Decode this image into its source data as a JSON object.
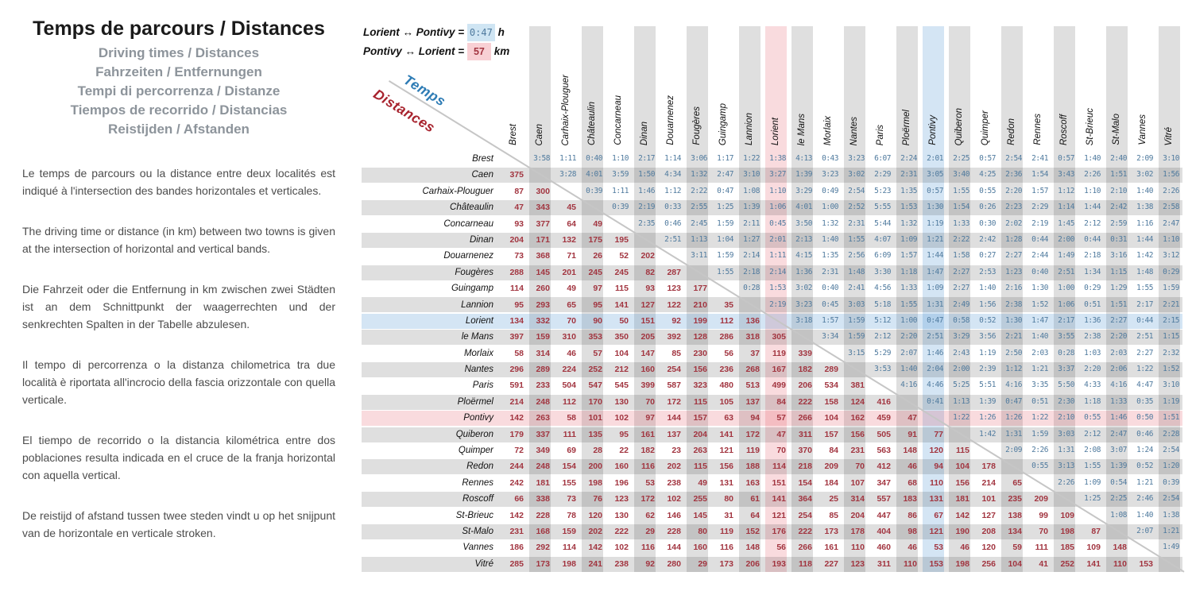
{
  "panel": {
    "title": "Temps de parcours / Distances",
    "subtitles": [
      "Driving times / Distances",
      "Fahrzeiten / Entfernungen",
      "Tempi di percorrenza / Distanze",
      "Tiempos de recorrido / Distancias",
      "Reistijden / Afstanden"
    ],
    "paragraphs": [
      "Le temps de parcours ou la distance entre deux localités est indiqué à l'intersection des bandes horizontales et verticales.",
      "The driving time or distance (in km) between two towns is given at the intersection of horizontal and vertical bands.",
      "Die Fahrzeit oder die Entfernung in km zwischen zwei Städten ist an dem Schnittpunkt der waagerrechten und der senkrechten Spalten in der Tabelle abzulesen.",
      "Il tempo di percorrenza o la distanza chilometrica tra due località è riportata all'incrocio della fascia orizzontale con quella verticale.",
      "El tiempo de recorrido o la distancia kilométrica entre dos poblaciones resulta indicada en el cruce de la franja horizontal con aquella vertical.",
      "De reistijd of afstand tussen twee steden vindt u op het snijpunt van de horizontale en verticale stroken."
    ]
  },
  "legend": {
    "line1": {
      "label": "Lorient ↔ Pontivy =",
      "value": "0:47",
      "unit": "h"
    },
    "line2": {
      "label": "Pontivy ↔ Lorient =",
      "value": "57",
      "unit": "km"
    }
  },
  "axis_labels": {
    "time": "Temps",
    "distance": "Distances"
  },
  "colors": {
    "time_text": "#4f7a9e",
    "distance_text": "#a23540",
    "band_gray": "#dcdcdc",
    "highlight_blue": "#cfe5f3",
    "highlight_pink": "#f8d0d4",
    "title": "#1a1a1a",
    "subtitle": "#8d949b"
  },
  "matrix": {
    "upper_triangle": "driving times h:mm",
    "lower_triangle": "distances km",
    "cities": [
      "Brest",
      "Caen",
      "Carhaix-Plouguer",
      "Châteaulin",
      "Concarneau",
      "Dinan",
      "Douarnenez",
      "Fougères",
      "Guingamp",
      "Lannion",
      "Lorient",
      "le Mans",
      "Morlaix",
      "Nantes",
      "Paris",
      "Ploërmel",
      "Pontivy",
      "Quiberon",
      "Quimper",
      "Redon",
      "Rennes",
      "Roscoff",
      "St-Brieuc",
      "St-Malo",
      "Vannes",
      "Vitré"
    ],
    "row_bands": {
      "Lorient": "blue",
      "Pontivy": "pink"
    },
    "col_bands": {
      "Lorient": "pink",
      "Pontivy": "blue"
    },
    "rows": [
      [
        "",
        "3:58",
        "1:11",
        "0:40",
        "1:10",
        "2:17",
        "1:14",
        "3:06",
        "1:17",
        "1:22",
        "1:38",
        "4:13",
        "0:43",
        "3:23",
        "6:07",
        "2:24",
        "2:01",
        "2:25",
        "0:57",
        "2:54",
        "2:41",
        "0:57",
        "1:40",
        "2:40",
        "2:09",
        "3:10"
      ],
      [
        "375",
        "",
        "3:28",
        "4:01",
        "3:59",
        "1:50",
        "4:34",
        "1:32",
        "2:47",
        "3:10",
        "3:27",
        "1:39",
        "3:23",
        "3:02",
        "2:29",
        "2:31",
        "3:05",
        "3:40",
        "4:25",
        "2:36",
        "1:54",
        "3:43",
        "2:26",
        "1:51",
        "3:02",
        "1:56"
      ],
      [
        "87",
        "300",
        "",
        "0:39",
        "1:11",
        "1:46",
        "1:12",
        "2:22",
        "0:47",
        "1:08",
        "1:10",
        "3:29",
        "0:49",
        "2:54",
        "5:23",
        "1:35",
        "0:57",
        "1:55",
        "0:55",
        "2:20",
        "1:57",
        "1:12",
        "1:10",
        "2:10",
        "1:40",
        "2:26"
      ],
      [
        "47",
        "343",
        "45",
        "",
        "0:39",
        "2:19",
        "0:33",
        "2:55",
        "1:25",
        "1:39",
        "1:06",
        "4:01",
        "1:00",
        "2:52",
        "5:55",
        "1:53",
        "1:30",
        "1:54",
        "0:26",
        "2:23",
        "2:29",
        "1:14",
        "1:44",
        "2:42",
        "1:38",
        "2:58"
      ],
      [
        "93",
        "377",
        "64",
        "49",
        "",
        "2:35",
        "0:46",
        "2:45",
        "1:59",
        "2:11",
        "0:45",
        "3:50",
        "1:32",
        "2:31",
        "5:44",
        "1:32",
        "1:19",
        "1:33",
        "0:30",
        "2:02",
        "2:19",
        "1:45",
        "2:12",
        "2:59",
        "1:16",
        "2:47"
      ],
      [
        "204",
        "171",
        "132",
        "175",
        "195",
        "",
        "2:51",
        "1:13",
        "1:04",
        "1:27",
        "2:01",
        "2:13",
        "1:40",
        "1:55",
        "4:07",
        "1:09",
        "1:21",
        "2:22",
        "2:42",
        "1:28",
        "0:44",
        "2:00",
        "0:44",
        "0:31",
        "1:44",
        "1:10"
      ],
      [
        "73",
        "368",
        "71",
        "26",
        "52",
        "202",
        "",
        "3:11",
        "1:59",
        "2:14",
        "1:11",
        "4:15",
        "1:35",
        "2:56",
        "6:09",
        "1:57",
        "1:44",
        "1:58",
        "0:27",
        "2:27",
        "2:44",
        "1:49",
        "2:18",
        "3:16",
        "1:42",
        "3:12"
      ],
      [
        "288",
        "145",
        "201",
        "245",
        "245",
        "82",
        "287",
        "",
        "1:55",
        "2:18",
        "2:14",
        "1:36",
        "2:31",
        "1:48",
        "3:30",
        "1:18",
        "1:47",
        "2:27",
        "2:53",
        "1:23",
        "0:40",
        "2:51",
        "1:34",
        "1:15",
        "1:48",
        "0:29"
      ],
      [
        "114",
        "260",
        "49",
        "97",
        "115",
        "93",
        "123",
        "177",
        "",
        "0:28",
        "1:53",
        "3:02",
        "0:40",
        "2:41",
        "4:56",
        "1:33",
        "1:09",
        "2:27",
        "1:40",
        "2:16",
        "1:30",
        "1:00",
        "0:29",
        "1:29",
        "1:55",
        "1:59"
      ],
      [
        "95",
        "293",
        "65",
        "95",
        "141",
        "127",
        "122",
        "210",
        "35",
        "",
        "2:19",
        "3:23",
        "0:45",
        "3:03",
        "5:18",
        "1:55",
        "1:31",
        "2:49",
        "1:56",
        "2:38",
        "1:52",
        "1:06",
        "0:51",
        "1:51",
        "2:17",
        "2:21"
      ],
      [
        "134",
        "332",
        "70",
        "90",
        "50",
        "151",
        "92",
        "199",
        "112",
        "136",
        "",
        "3:18",
        "1:57",
        "1:59",
        "5:12",
        "1:00",
        "0:47",
        "0:58",
        "0:52",
        "1:30",
        "1:47",
        "2:17",
        "1:36",
        "2:27",
        "0:44",
        "2:15"
      ],
      [
        "397",
        "159",
        "310",
        "353",
        "350",
        "205",
        "392",
        "128",
        "286",
        "318",
        "305",
        "",
        "3:34",
        "1:59",
        "2:12",
        "2:20",
        "2:51",
        "3:29",
        "3:56",
        "2:21",
        "1:40",
        "3:55",
        "2:38",
        "2:20",
        "2:51",
        "1:15"
      ],
      [
        "58",
        "314",
        "46",
        "57",
        "104",
        "147",
        "85",
        "230",
        "56",
        "37",
        "119",
        "339",
        "",
        "3:15",
        "5:29",
        "2:07",
        "1:46",
        "2:43",
        "1:19",
        "2:50",
        "2:03",
        "0:28",
        "1:03",
        "2:03",
        "2:27",
        "2:32"
      ],
      [
        "296",
        "289",
        "224",
        "252",
        "212",
        "160",
        "254",
        "156",
        "236",
        "268",
        "167",
        "182",
        "289",
        "",
        "3:53",
        "1:40",
        "2:04",
        "2:00",
        "2:39",
        "1:12",
        "1:21",
        "3:37",
        "2:20",
        "2:06",
        "1:22",
        "1:52"
      ],
      [
        "591",
        "233",
        "504",
        "547",
        "545",
        "399",
        "587",
        "323",
        "480",
        "513",
        "499",
        "206",
        "534",
        "381",
        "",
        "4:16",
        "4:46",
        "5:25",
        "5:51",
        "4:16",
        "3:35",
        "5:50",
        "4:33",
        "4:16",
        "4:47",
        "3:10"
      ],
      [
        "214",
        "248",
        "112",
        "170",
        "130",
        "70",
        "172",
        "115",
        "105",
        "137",
        "84",
        "222",
        "158",
        "124",
        "416",
        "",
        "0:41",
        "1:13",
        "1:39",
        "0:47",
        "0:51",
        "2:30",
        "1:18",
        "1:33",
        "0:35",
        "1:19"
      ],
      [
        "142",
        "263",
        "58",
        "101",
        "102",
        "97",
        "144",
        "157",
        "63",
        "94",
        "57",
        "266",
        "104",
        "162",
        "459",
        "47",
        "",
        "1:22",
        "1:26",
        "1:26",
        "1:22",
        "2:10",
        "0:55",
        "1:46",
        "0:50",
        "1:51"
      ],
      [
        "179",
        "337",
        "111",
        "135",
        "95",
        "161",
        "137",
        "204",
        "141",
        "172",
        "47",
        "311",
        "157",
        "156",
        "505",
        "91",
        "77",
        "",
        "1:42",
        "1:31",
        "1:59",
        "3:03",
        "2:12",
        "2:47",
        "0:46",
        "2:28"
      ],
      [
        "72",
        "349",
        "69",
        "28",
        "22",
        "182",
        "23",
        "263",
        "121",
        "119",
        "70",
        "370",
        "84",
        "231",
        "563",
        "148",
        "120",
        "115",
        "",
        "2:09",
        "2:26",
        "1:31",
        "2:08",
        "3:07",
        "1:24",
        "2:54"
      ],
      [
        "244",
        "248",
        "154",
        "200",
        "160",
        "116",
        "202",
        "115",
        "156",
        "188",
        "114",
        "218",
        "209",
        "70",
        "412",
        "46",
        "94",
        "104",
        "178",
        "",
        "0:55",
        "3:13",
        "1:55",
        "1:39",
        "0:52",
        "1:20"
      ],
      [
        "242",
        "181",
        "155",
        "198",
        "196",
        "53",
        "238",
        "49",
        "131",
        "163",
        "151",
        "154",
        "184",
        "107",
        "347",
        "68",
        "110",
        "156",
        "214",
        "65",
        "",
        "2:26",
        "1:09",
        "0:54",
        "1:21",
        "0:39"
      ],
      [
        "66",
        "338",
        "73",
        "76",
        "123",
        "172",
        "102",
        "255",
        "80",
        "61",
        "141",
        "364",
        "25",
        "314",
        "557",
        "183",
        "131",
        "181",
        "101",
        "235",
        "209",
        "",
        "1:25",
        "2:25",
        "2:46",
        "2:54"
      ],
      [
        "142",
        "228",
        "78",
        "120",
        "130",
        "62",
        "146",
        "145",
        "31",
        "64",
        "121",
        "254",
        "85",
        "204",
        "447",
        "86",
        "67",
        "142",
        "127",
        "138",
        "99",
        "109",
        "",
        "1:08",
        "1:40",
        "1:38"
      ],
      [
        "231",
        "168",
        "159",
        "202",
        "222",
        "29",
        "228",
        "80",
        "119",
        "152",
        "176",
        "222",
        "173",
        "178",
        "404",
        "98",
        "121",
        "190",
        "208",
        "134",
        "70",
        "198",
        "87",
        "",
        "2:07",
        "1:21"
      ],
      [
        "186",
        "292",
        "114",
        "142",
        "102",
        "116",
        "144",
        "160",
        "116",
        "148",
        "56",
        "266",
        "161",
        "110",
        "460",
        "46",
        "53",
        "46",
        "120",
        "59",
        "111",
        "185",
        "109",
        "148",
        "",
        "1:49"
      ],
      [
        "285",
        "173",
        "198",
        "241",
        "238",
        "92",
        "280",
        "29",
        "173",
        "206",
        "193",
        "118",
        "227",
        "123",
        "311",
        "110",
        "153",
        "198",
        "256",
        "104",
        "41",
        "252",
        "141",
        "110",
        "153",
        ""
      ]
    ]
  }
}
